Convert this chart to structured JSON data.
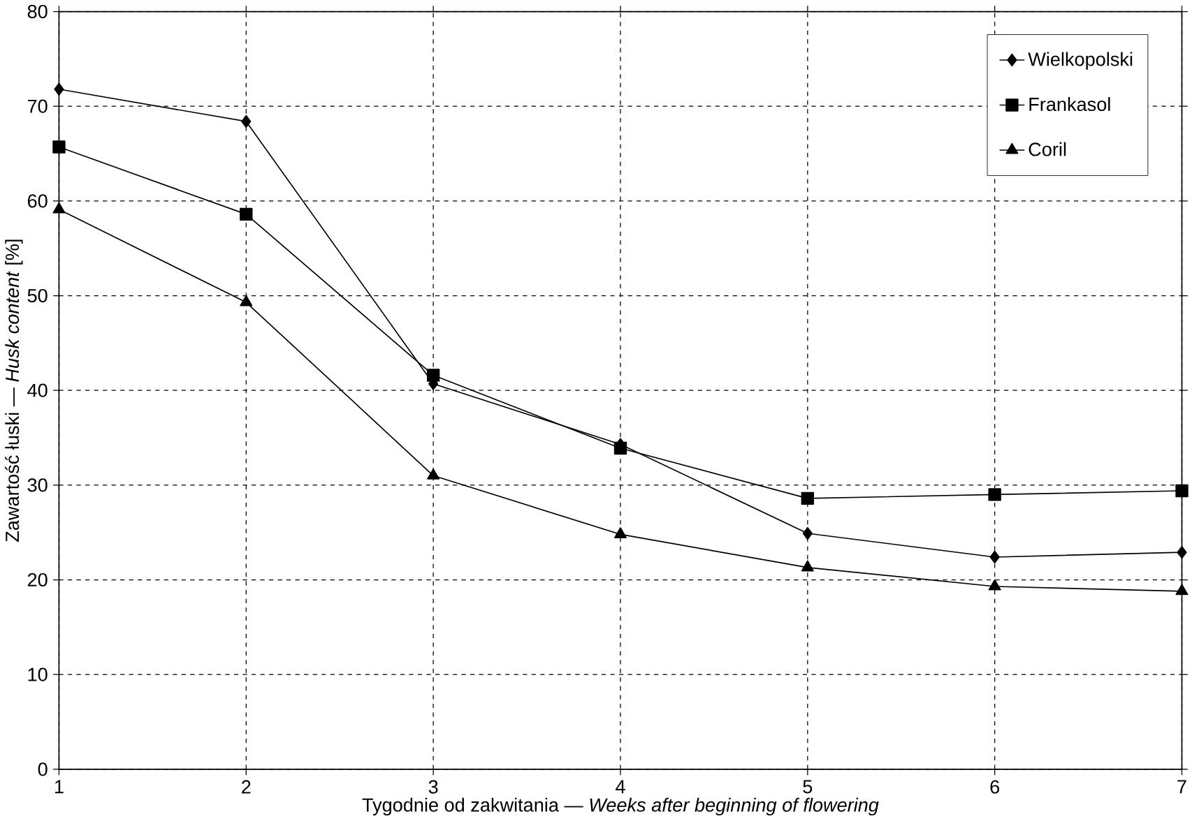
{
  "chart_data": {
    "type": "line",
    "xlabel": "Tygodnie od zakwitania — *Weeks after beginning of flowering*",
    "ylabel": "Zawartość łuski — *Husk content* [%]",
    "x": [
      1,
      2,
      3,
      4,
      5,
      6,
      7
    ],
    "series": [
      {
        "name": "Wielkopolski",
        "color": "#000000",
        "marker": "diamond",
        "values": [
          71.8,
          68.4,
          40.7,
          34.3,
          24.9,
          22.4,
          22.9
        ]
      },
      {
        "name": "Frankasol",
        "color": "#000000",
        "marker": "square",
        "values": [
          65.7,
          58.6,
          41.6,
          33.9,
          28.6,
          29.0,
          29.4
        ]
      },
      {
        "name": "Coril",
        "color": "#000000",
        "marker": "triangle",
        "values": [
          59.1,
          49.3,
          31.0,
          24.8,
          21.3,
          19.3,
          18.8
        ]
      }
    ],
    "xlim": [
      1,
      7
    ],
    "xticks": [
      1,
      2,
      3,
      4,
      5,
      6,
      7
    ],
    "ylim": [
      0,
      80
    ],
    "yticks": [
      0,
      10,
      20,
      30,
      40,
      50,
      60,
      70,
      80
    ],
    "grid": true,
    "legend": "top right",
    "line_style": "solid"
  }
}
